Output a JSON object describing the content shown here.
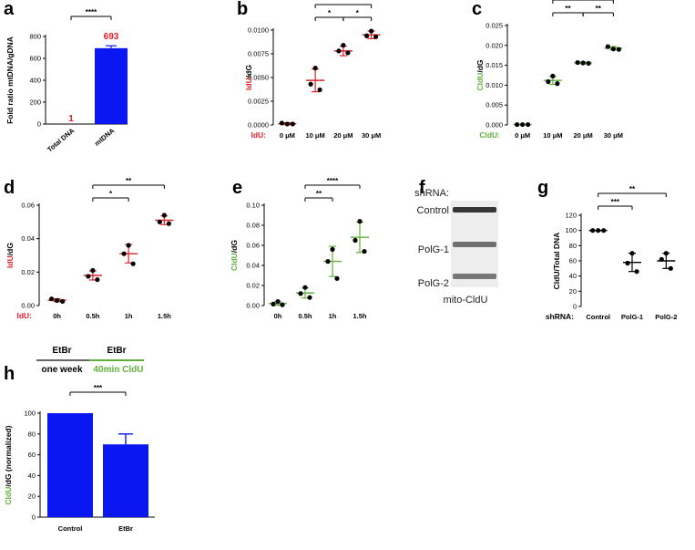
{
  "colors": {
    "red": "#e0202a",
    "green": "#5fb13b",
    "blue": "#0a17f2",
    "black": "#000000"
  },
  "chart_data": [
    {
      "panel": "a",
      "type": "bar",
      "ylabel": "Fold ratio mtDNA/gDNA",
      "categories": [
        "Total DNA",
        "mtDNA"
      ],
      "values": [
        1,
        693
      ],
      "errors": [
        0,
        22
      ],
      "value_labels": [
        "1",
        "693"
      ],
      "yticks": [
        "0",
        "200",
        "400",
        "600",
        "800"
      ],
      "ylim": [
        0,
        800
      ],
      "significance": [
        {
          "from": 0,
          "to": 1,
          "label": "****"
        }
      ]
    },
    {
      "panel": "b",
      "type": "scatter",
      "ylabel_colored": "IdU",
      "ylabel_rest": "/dG",
      "xtitle": "IdU:",
      "categories": [
        "0 μM",
        "10 μM",
        "20 μM",
        "30 μM"
      ],
      "points": [
        [
          0.0002,
          0.0001,
          0.0001
        ],
        [
          0.006,
          0.0043,
          0.0037
        ],
        [
          0.0084,
          0.0078,
          0.0076
        ],
        [
          0.0099,
          0.0094,
          0.0093
        ]
      ],
      "mean": [
        0.00013,
        0.0047,
        0.0078,
        0.0095
      ],
      "sd": [
        0.0001,
        0.0012,
        0.0005,
        0.0004
      ],
      "yticks": [
        "0.0000",
        "0.0025",
        "0.0050",
        "0.0075",
        "0.0100"
      ],
      "ylim": [
        0,
        0.01
      ],
      "significance": [
        {
          "from": 1,
          "to": 2,
          "label": "*",
          "level": 1
        },
        {
          "from": 2,
          "to": 3,
          "label": "*",
          "level": 1
        },
        {
          "from": 1,
          "to": 3,
          "label": "**",
          "level": 2
        }
      ]
    },
    {
      "panel": "c",
      "type": "scatter",
      "ylabel_colored": "CldU",
      "ylabel_rest": "/dG",
      "xtitle": "CldU:",
      "categories": [
        "0 μM",
        "10 μM",
        "20 μM",
        "30 μM"
      ],
      "points": [
        [
          0.0001,
          0.0001,
          0.0001
        ],
        [
          0.0123,
          0.0109,
          0.0104
        ],
        [
          0.0157,
          0.0156,
          0.0155
        ],
        [
          0.0197,
          0.0191,
          0.019
        ]
      ],
      "mean": [
        0.0001,
        0.0112,
        0.0156,
        0.0193
      ],
      "sd": [
        5e-05,
        0.001,
        0.0002,
        0.0004
      ],
      "yticks": [
        "0.000",
        "0.005",
        "0.010",
        "0.015",
        "0.020",
        "0.025"
      ],
      "ylim": [
        0,
        0.025
      ],
      "significance": [
        {
          "from": 1,
          "to": 2,
          "label": "**",
          "level": 1
        },
        {
          "from": 2,
          "to": 3,
          "label": "**",
          "level": 1
        },
        {
          "from": 1,
          "to": 3,
          "label": "***",
          "level": 2
        }
      ]
    },
    {
      "panel": "d",
      "type": "scatter",
      "ylabel_colored": "IdU",
      "ylabel_rest": "/dG",
      "xtitle": "IdU:",
      "categories": [
        "0h",
        "0.5h",
        "1h",
        "1.5h"
      ],
      "points": [
        [
          0.004,
          0.003,
          0.0025
        ],
        [
          0.021,
          0.0175,
          0.0155
        ],
        [
          0.036,
          0.031,
          0.025
        ],
        [
          0.054,
          0.05,
          0.049
        ]
      ],
      "mean": [
        0.0032,
        0.018,
        0.031,
        0.051
      ],
      "sd": [
        0.0008,
        0.0027,
        0.0055,
        0.0026
      ],
      "yticks": [
        "0.00",
        "0.02",
        "0.04",
        "0.06"
      ],
      "ylim": [
        0,
        0.06
      ],
      "significance": [
        {
          "from": 1,
          "to": 2,
          "label": "*",
          "level": 1
        },
        {
          "from": 1,
          "to": 3,
          "label": "**",
          "level": 2
        }
      ]
    },
    {
      "panel": "e",
      "type": "scatter",
      "ylabel_colored": "CldU",
      "ylabel_rest": "/dG",
      "xtitle": "",
      "categories": [
        "0h",
        "0.5h",
        "1h",
        "1.5h"
      ],
      "points": [
        [
          0.004,
          0.0015,
          0.0008
        ],
        [
          0.018,
          0.012,
          0.008
        ],
        [
          0.056,
          0.044,
          0.027
        ],
        [
          0.084,
          0.065,
          0.054
        ]
      ],
      "mean": [
        0.002,
        0.0125,
        0.044,
        0.068
      ],
      "sd": [
        0.0018,
        0.005,
        0.015,
        0.015
      ],
      "yticks": [
        "0.00",
        "0.02",
        "0.04",
        "0.06",
        "0.08",
        "0.10"
      ],
      "ylim": [
        0,
        0.1
      ],
      "significance": [
        {
          "from": 1,
          "to": 2,
          "label": "**",
          "level": 1
        },
        {
          "from": 1,
          "to": 3,
          "label": "****",
          "level": 2
        }
      ]
    },
    {
      "panel": "f",
      "type": "blot",
      "header": "shRNA:",
      "lanes": [
        "Control",
        "PolG-1",
        "PolG-2"
      ],
      "band_intensity": [
        1.0,
        0.72,
        0.68
      ],
      "caption": "mito-CldU"
    },
    {
      "panel": "g",
      "type": "scatter",
      "ylabel": "CldU/Total DNA",
      "xtitle": "shRNA:",
      "categories": [
        "Control",
        "PolG-1",
        "PolG-2"
      ],
      "points": [
        [
          100,
          100,
          100
        ],
        [
          70,
          57,
          46
        ],
        [
          70,
          62,
          50
        ]
      ],
      "mean": [
        100,
        58,
        60
      ],
      "sd": [
        0,
        12,
        10
      ],
      "yticks": [
        "0",
        "20",
        "40",
        "60",
        "80",
        "100",
        "120"
      ],
      "ylim": [
        0,
        120
      ],
      "significance": [
        {
          "from": 0,
          "to": 1,
          "label": "***",
          "level": 1
        },
        {
          "from": 0,
          "to": 2,
          "label": "**",
          "level": 2
        }
      ]
    },
    {
      "panel": "h",
      "type": "bar",
      "ylabel_colored": "CldU",
      "ylabel_rest": "/dG (normalized)",
      "categories": [
        "Control",
        "EtBr"
      ],
      "values": [
        100,
        70
      ],
      "errors": [
        0,
        10
      ],
      "yticks": [
        "0",
        "20",
        "40",
        "60",
        "80",
        "100"
      ],
      "ylim": [
        0,
        100
      ],
      "significance": [
        {
          "from": 0,
          "to": 1,
          "label": "***"
        }
      ],
      "timeline": {
        "left_top": "EtBr",
        "right_top": "EtBr",
        "left_bottom": "one week",
        "right_bottom": "40min CldU"
      }
    }
  ]
}
